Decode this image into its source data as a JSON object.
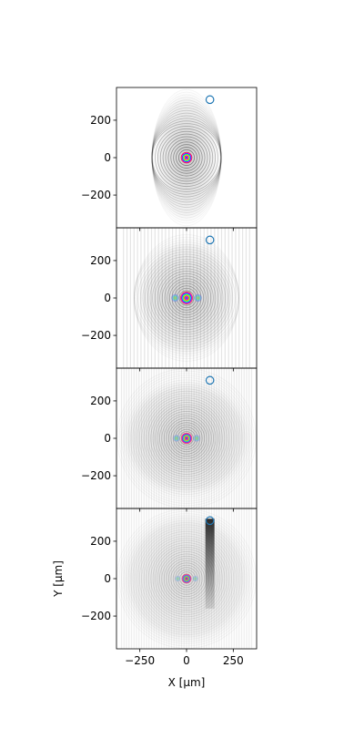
{
  "chart_data": {
    "type": "heatmap",
    "layout": "4 vertically stacked panels sharing x axis",
    "xlabel": "X [μm]",
    "ylabel": "Y [μm]",
    "xlim": [
      -375,
      375
    ],
    "ylim": [
      -375,
      375
    ],
    "xticks": [
      -250,
      0,
      250
    ],
    "xtick_labels": [
      "−250",
      "0",
      "250"
    ],
    "yticks": [
      200,
      0,
      -200
    ],
    "ytick_labels": [
      "200",
      "0",
      "−200"
    ],
    "colormap": "hsv (phase), alpha scaled by intensity",
    "marker": {
      "shape": "circle",
      "facecolor": "none",
      "edgecolor": "#1f77b4",
      "x": 125,
      "y": 310
    },
    "panels": [
      {
        "index": 1,
        "pattern": "concentric rings around origin, strong bright center",
        "center_x": 0,
        "center_y": 0,
        "core_radius": 30,
        "envelope_x_halfwidth": 185,
        "envelope_y_halfheight": 375,
        "ring_spacing": 14,
        "core_strength": 1.0
      },
      {
        "index": 2,
        "pattern": "concentric rings with vertical fringes, weaker center",
        "center_x": 0,
        "center_y": 0,
        "core_radius": 34,
        "envelope_x_halfwidth": 280,
        "envelope_y_halfheight": 340,
        "ring_spacing": 13,
        "core_strength": 0.7
      },
      {
        "index": 3,
        "pattern": "diffuse rings and fringes, faint center",
        "center_x": 0,
        "center_y": 0,
        "core_radius": 30,
        "envelope_x_halfwidth": 375,
        "envelope_y_halfheight": 330,
        "ring_spacing": 12,
        "core_strength": 0.45
      },
      {
        "index": 4,
        "pattern": "faint speckle with narrow beam towards marker",
        "center_x": 0,
        "center_y": 0,
        "core_radius": 26,
        "envelope_x_halfwidth": 375,
        "envelope_y_halfheight": 375,
        "ring_spacing": 12,
        "core_strength": 0.2,
        "beam_x": 125,
        "beam_y_top": 320,
        "beam_y_bottom": -160
      }
    ]
  }
}
